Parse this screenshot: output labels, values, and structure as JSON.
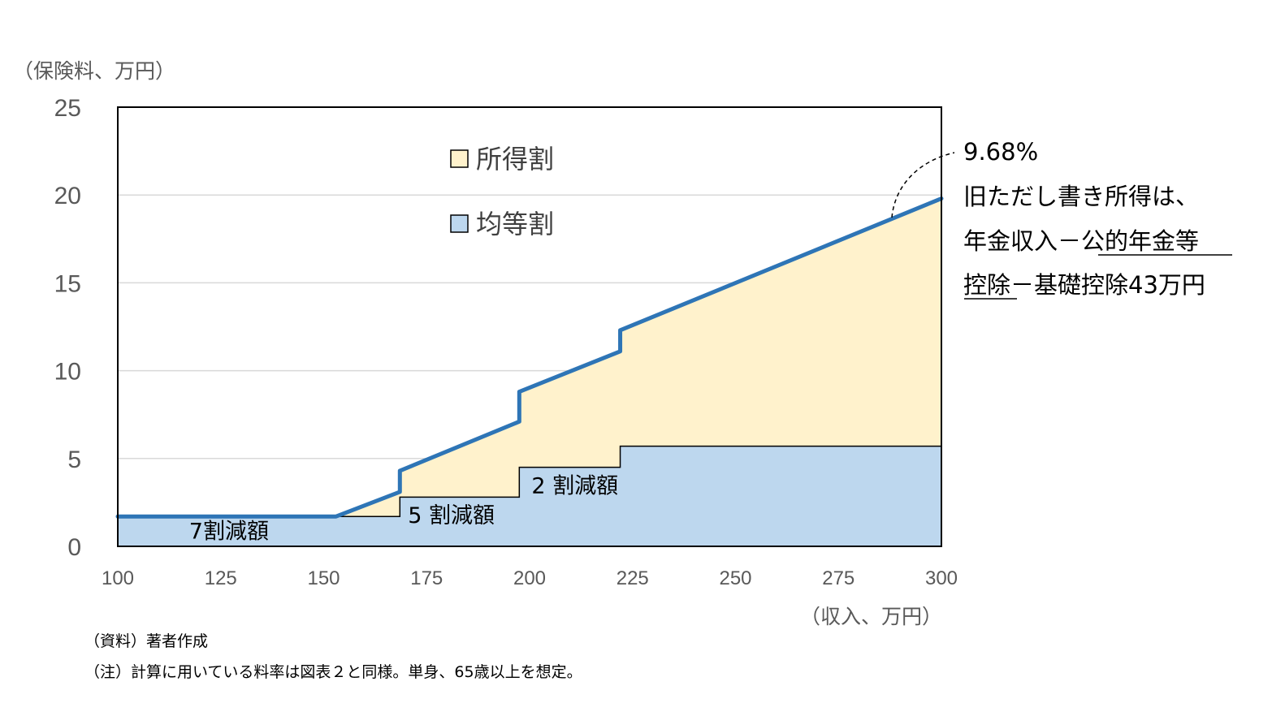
{
  "chart_data": {
    "type": "area",
    "ylabel": "（保険料、万円）",
    "xlabel": "（収入、万円）",
    "xlim": [
      100,
      300
    ],
    "ylim": [
      0,
      25
    ],
    "x_ticks": [
      100,
      125,
      150,
      175,
      200,
      225,
      250,
      275,
      300
    ],
    "y_ticks": [
      0,
      5,
      10,
      15,
      20,
      25
    ],
    "grid": "horizontal",
    "legend_position": "top-center",
    "series": [
      {
        "name": "均等割",
        "color": "#BDD7EE",
        "x": [
          100,
          168.5,
          168.5,
          197.5,
          197.5,
          222,
          222,
          300
        ],
        "y": [
          1.7,
          1.7,
          2.8,
          2.8,
          4.5,
          4.5,
          5.7,
          5.7
        ]
      },
      {
        "name": "所得割",
        "color": "#FFF2CC",
        "x": [
          100,
          153,
          168.5,
          168.5,
          197.5,
          197.5,
          222,
          222,
          300
        ],
        "y": [
          1.7,
          1.7,
          3.1,
          4.3,
          7.1,
          8.8,
          11.1,
          12.3,
          19.8
        ]
      }
    ],
    "total_line_color": "#2E75B6",
    "annotations": {
      "reduction_labels": [
        {
          "text": "7割減額",
          "x": 127,
          "y": 0.9
        },
        {
          "text": "5 割減額",
          "x": 181,
          "y": 1.8
        },
        {
          "text": "2 割減額",
          "x": 211,
          "y": 3.5
        }
      ],
      "rate_note": [
        "9.68%",
        "旧ただし書き所得は、",
        "年金収入－公的年金等",
        "控除－基礎控除43万円"
      ],
      "rate_note_underlined": [
        "公的年金等",
        "控除"
      ]
    }
  },
  "footnotes": {
    "source": "（資料）著者作成",
    "note": "（注）計算に用いている料率は図表２と同様。単身、65歳以上を想定。"
  }
}
